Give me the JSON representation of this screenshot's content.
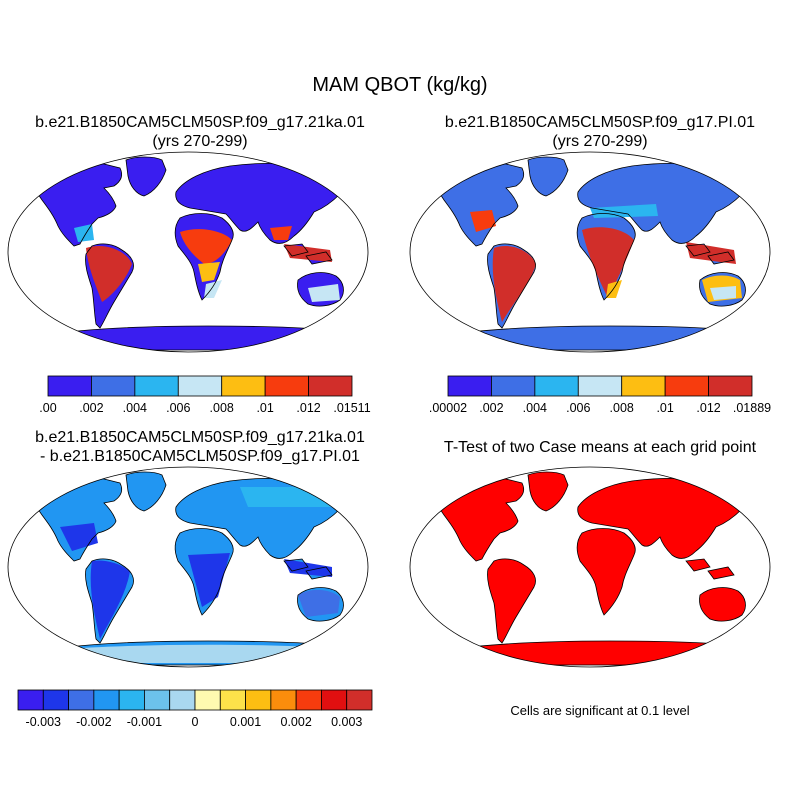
{
  "title": "MAM QBOT (kg/kg)",
  "panels": {
    "p1": {
      "title_line1": "b.e21.B1850CAM5CLM50SP.f09_g17.21ka.01",
      "title_line2": "(yrs 270-299)"
    },
    "p2": {
      "title_line1": "b.e21.B1850CAM5CLM50SP.f09_g17.PI.01",
      "title_line2": "(yrs 270-299)"
    },
    "p3": {
      "title_line1": "b.e21.B1850CAM5CLM50SP.f09_g17.21ka.01",
      "title_line2": "- b.e21.B1850CAM5CLM50SP.f09_g17.PI.01"
    },
    "p4": {
      "title_line1": "T-Test of two Case means at each grid point"
    }
  },
  "colorbars": {
    "cb1": {
      "colors": [
        "#3a1ef0",
        "#3e6fe6",
        "#2bb5f0",
        "#c6e6f4",
        "#fdbe12",
        "#f73c0e",
        "#d12e2a"
      ],
      "labels": [
        ".00",
        ".002",
        ".004",
        ".006",
        ".008",
        ".01",
        ".012",
        ".01511"
      ]
    },
    "cb2": {
      "colors": [
        "#3a1ef0",
        "#3e6fe6",
        "#2bb5f0",
        "#c6e6f4",
        "#fdbe12",
        "#f73c0e",
        "#d12e2a"
      ],
      "labels": [
        ".00002",
        ".002",
        ".004",
        ".006",
        ".008",
        ".01",
        ".012",
        ".01889"
      ]
    },
    "cb3": {
      "colors": [
        "#3a1ef0",
        "#1e36ea",
        "#3e6fe6",
        "#2196f2",
        "#2bb5f0",
        "#6cc2ec",
        "#a9d8f0",
        "#fefab0",
        "#fde24a",
        "#fdbe12",
        "#fb8d0c",
        "#f73c0e",
        "#e10f10",
        "#d12e2a"
      ],
      "labels": [
        "-0.003",
        "-0.002",
        "-0.001",
        "0",
        "0.001",
        "0.002",
        "0.003"
      ]
    }
  },
  "note": "Cells are significant at 0.1 level",
  "colors": {
    "ocean": "#ffffff",
    "coast": "#000000",
    "significant": "#ff0000"
  }
}
